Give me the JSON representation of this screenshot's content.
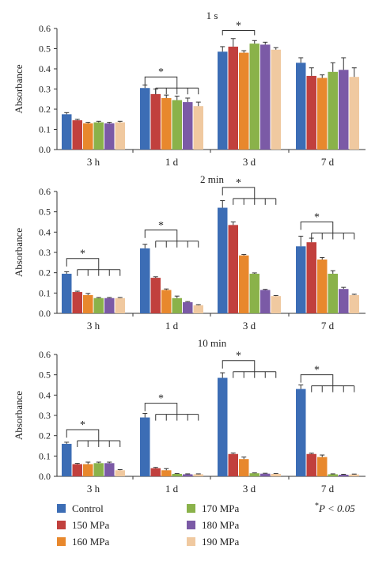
{
  "chart_data": [
    {
      "type": "bar",
      "title": "1 s",
      "ylabel": "Absorbance",
      "xlabel": "",
      "ylim": [
        0,
        0.6
      ],
      "yticks": [
        0.0,
        0.1,
        0.2,
        0.3,
        0.4,
        0.5,
        0.6
      ],
      "ytick_labels": [
        "0.0",
        "0.1",
        "0.2",
        "0.3",
        "0.4",
        "0.5",
        "0.6"
      ],
      "categories": [
        "3 h",
        "1 d",
        "3 d",
        "7 d"
      ],
      "series": [
        {
          "name": "Control",
          "values": [
            0.175,
            0.305,
            0.485,
            0.43
          ],
          "errors": [
            0.008,
            0.015,
            0.025,
            0.025
          ]
        },
        {
          "name": "150 MPa",
          "values": [
            0.145,
            0.275,
            0.51,
            0.365
          ],
          "errors": [
            0.005,
            0.025,
            0.04,
            0.04
          ]
        },
        {
          "name": "160 MPa",
          "values": [
            0.13,
            0.255,
            0.48,
            0.355
          ],
          "errors": [
            0.005,
            0.015,
            0.01,
            0.015
          ]
        },
        {
          "name": "170 MPa",
          "values": [
            0.135,
            0.245,
            0.525,
            0.385
          ],
          "errors": [
            0.005,
            0.02,
            0.015,
            0.045
          ]
        },
        {
          "name": "180 MPa",
          "values": [
            0.13,
            0.235,
            0.52,
            0.395
          ],
          "errors": [
            0.005,
            0.02,
            0.012,
            0.06
          ]
        },
        {
          "name": "190 MPa",
          "values": [
            0.135,
            0.215,
            0.495,
            0.36
          ],
          "errors": [
            0.005,
            0.02,
            0.01,
            0.045
          ]
        }
      ],
      "significance": [
        {
          "category": "1 d",
          "label": "*",
          "type": "multi",
          "y": 0.36
        },
        {
          "category": "3 d",
          "label": "*",
          "type": "pair",
          "series": [
            0,
            3
          ],
          "y": 0.59
        }
      ]
    },
    {
      "type": "bar",
      "title": "2 min",
      "ylabel": "Absorbance",
      "xlabel": "",
      "ylim": [
        0,
        0.6
      ],
      "yticks": [
        0.0,
        0.1,
        0.2,
        0.3,
        0.4,
        0.5,
        0.6
      ],
      "ytick_labels": [
        "0.0",
        "0.1",
        "0.2",
        "0.3",
        "0.4",
        "0.5",
        "0.6"
      ],
      "categories": [
        "3 h",
        "1 d",
        "3 d",
        "7 d"
      ],
      "series": [
        {
          "name": "Control",
          "values": [
            0.195,
            0.32,
            0.52,
            0.33
          ],
          "errors": [
            0.01,
            0.02,
            0.035,
            0.05
          ]
        },
        {
          "name": "150 MPa",
          "values": [
            0.105,
            0.175,
            0.435,
            0.35
          ],
          "errors": [
            0.004,
            0.005,
            0.015,
            0.02
          ]
        },
        {
          "name": "160 MPa",
          "values": [
            0.09,
            0.115,
            0.285,
            0.265
          ],
          "errors": [
            0.008,
            0.005,
            0.005,
            0.01
          ]
        },
        {
          "name": "170 MPa",
          "values": [
            0.075,
            0.075,
            0.195,
            0.195
          ],
          "errors": [
            0.003,
            0.01,
            0.004,
            0.015
          ]
        },
        {
          "name": "180 MPa",
          "values": [
            0.075,
            0.055,
            0.115,
            0.12
          ],
          "errors": [
            0.003,
            0.003,
            0.003,
            0.008
          ]
        },
        {
          "name": "190 MPa",
          "values": [
            0.075,
            0.04,
            0.085,
            0.09
          ],
          "errors": [
            0.003,
            0.003,
            0.003,
            0.004
          ]
        }
      ],
      "significance": [
        {
          "category": "3 h",
          "label": "*",
          "type": "multi",
          "y": 0.27
        },
        {
          "category": "1 d",
          "label": "*",
          "type": "multi",
          "y": 0.41
        },
        {
          "category": "3 d",
          "label": "*",
          "type": "multi",
          "y": 0.62
        },
        {
          "category": "7 d",
          "label": "*",
          "type": "multi",
          "y": 0.45
        }
      ]
    },
    {
      "type": "bar",
      "title": "10 min",
      "ylabel": "Absorbance",
      "xlabel": "",
      "ylim": [
        0,
        0.6
      ],
      "yticks": [
        0.0,
        0.1,
        0.2,
        0.3,
        0.4,
        0.5,
        0.6
      ],
      "ytick_labels": [
        "0.0",
        "0.1",
        "0.2",
        "0.3",
        "0.4",
        "0.5",
        "0.6"
      ],
      "categories": [
        "3 h",
        "1 d",
        "3 d",
        "7 d"
      ],
      "series": [
        {
          "name": "Control",
          "values": [
            0.16,
            0.29,
            0.485,
            0.43
          ],
          "errors": [
            0.008,
            0.02,
            0.025,
            0.02
          ]
        },
        {
          "name": "150 MPa",
          "values": [
            0.06,
            0.04,
            0.11,
            0.11
          ],
          "errors": [
            0.004,
            0.004,
            0.005,
            0.004
          ]
        },
        {
          "name": "160 MPa",
          "values": [
            0.06,
            0.03,
            0.085,
            0.095
          ],
          "errors": [
            0.01,
            0.008,
            0.01,
            0.01
          ]
        },
        {
          "name": "170 MPa",
          "values": [
            0.065,
            0.012,
            0.015,
            0.01
          ],
          "errors": [
            0.005,
            0.002,
            0.002,
            0.002
          ]
        },
        {
          "name": "180 MPa",
          "values": [
            0.065,
            0.01,
            0.013,
            0.008
          ],
          "errors": [
            0.005,
            0.002,
            0.002,
            0.002
          ]
        },
        {
          "name": "190 MPa",
          "values": [
            0.03,
            0.01,
            0.012,
            0.009
          ],
          "errors": [
            0.003,
            0.002,
            0.002,
            0.002
          ]
        }
      ],
      "significance": [
        {
          "category": "3 h",
          "label": "*",
          "type": "multi",
          "y": 0.23
        },
        {
          "category": "1 d",
          "label": "*",
          "type": "multi",
          "y": 0.36
        },
        {
          "category": "3 d",
          "label": "*",
          "type": "multi",
          "y": 0.57
        },
        {
          "category": "7 d",
          "label": "*",
          "type": "multi",
          "y": 0.5
        }
      ]
    }
  ],
  "legend": {
    "placement": "bottom",
    "items": [
      {
        "label": "Control",
        "color": "#3c6db5"
      },
      {
        "label": "150 MPa",
        "color": "#c1403d"
      },
      {
        "label": "160 MPa",
        "color": "#e8882d"
      },
      {
        "label": "170 MPa",
        "color": "#8ab24a"
      },
      {
        "label": "180 MPa",
        "color": "#7b5aa6"
      },
      {
        "label": "190 MPa",
        "color": "#f0c9a0"
      }
    ],
    "note_star": "*",
    "note_text": "P < 0.05"
  }
}
